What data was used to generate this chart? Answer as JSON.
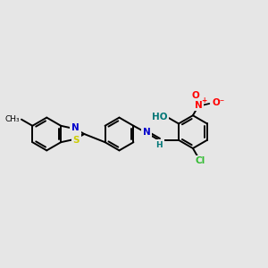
{
  "bg_color": "#e6e6e6",
  "bond_color": "#000000",
  "bond_width": 1.4,
  "atom_colors": {
    "N": "#0000cc",
    "S": "#cccc00",
    "O": "#ff0000",
    "Cl": "#33bb33",
    "H": "#007777",
    "NO2_N": "#ff0000",
    "HO": "#007777"
  },
  "font_size": 7.5,
  "fig_width": 3.0,
  "fig_height": 3.0,
  "dpi": 100
}
